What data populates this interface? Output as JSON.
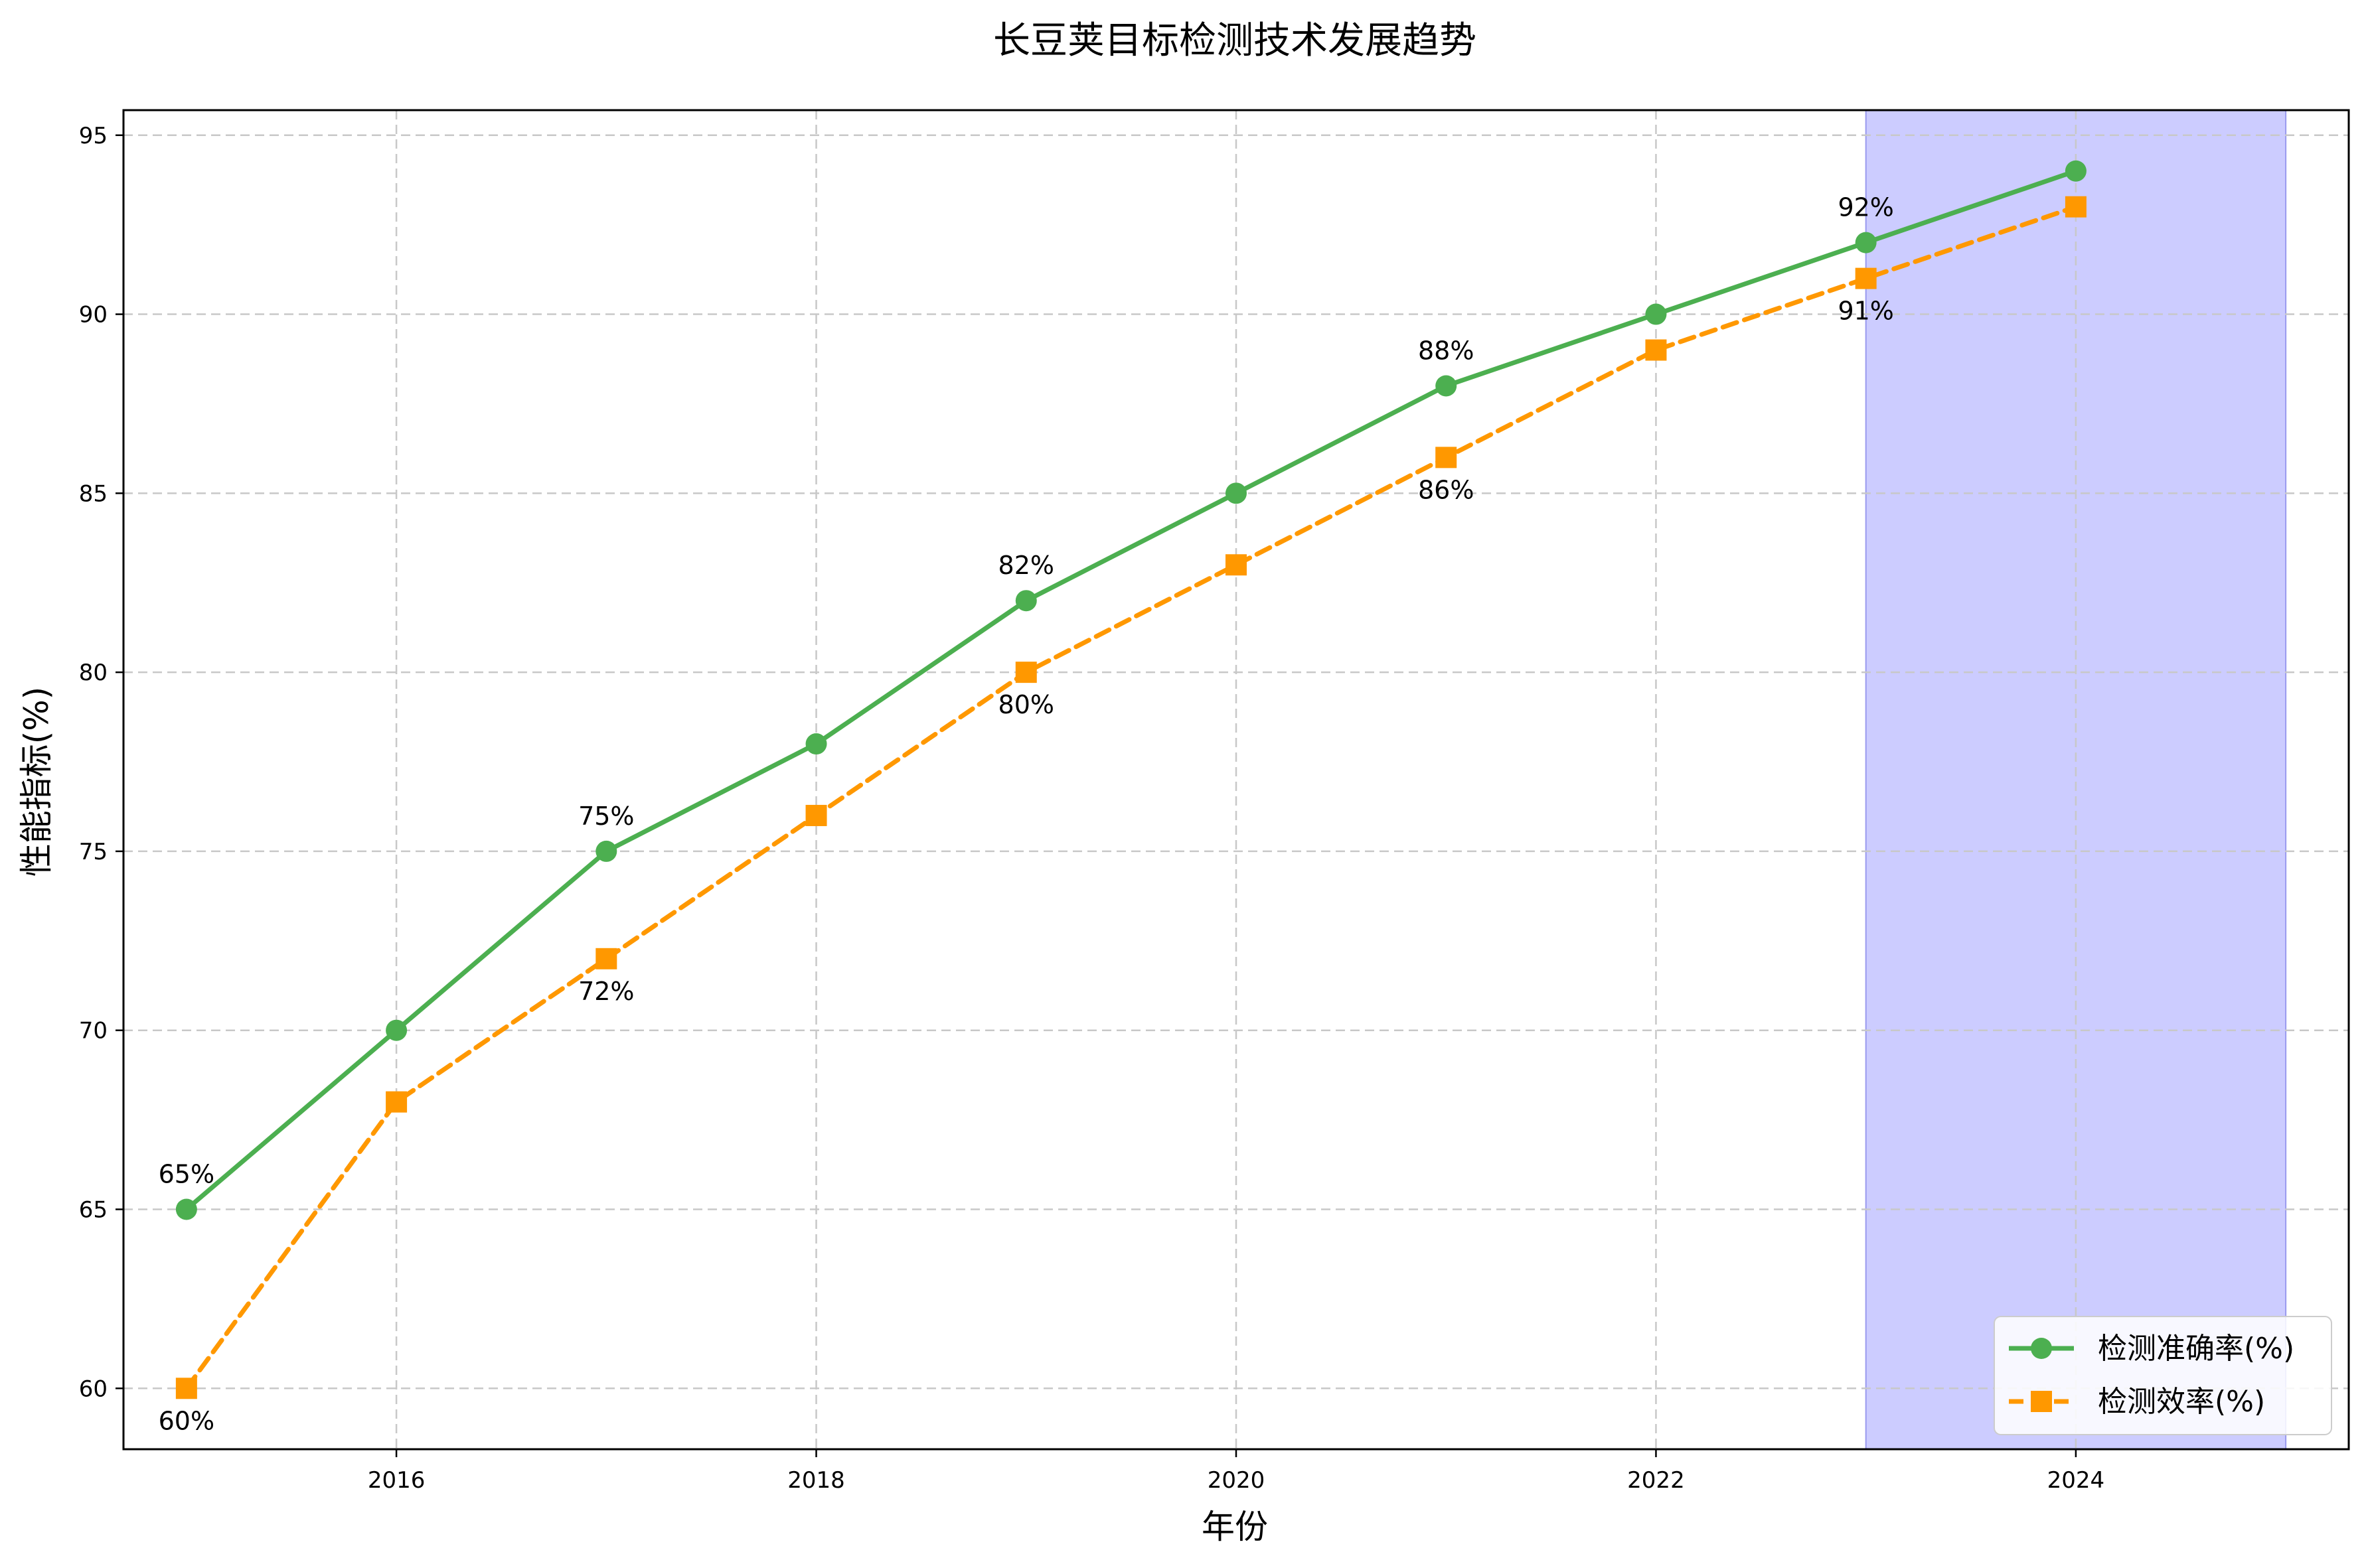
{
  "colors": {
    "accuracy": "#4caf50",
    "efficiency": "#ff9800",
    "highlight": "#ccccff",
    "highlight_edge": "#9999ee"
  },
  "chart_data": {
    "type": "line",
    "title": "长豆荚目标检测技术发展趋势",
    "xlabel": "年份",
    "ylabel": "性能指标(%)",
    "xlim": [
      2014.7,
      2025.3
    ],
    "ylim": [
      58.3,
      95.7
    ],
    "xticks": [
      2016,
      2018,
      2020,
      2022,
      2024
    ],
    "yticks": [
      60,
      65,
      70,
      75,
      80,
      85,
      90,
      95
    ],
    "grid": true,
    "legend_position": "lower-right",
    "highlight_span": [
      2023,
      2025
    ],
    "x": [
      2015,
      2016,
      2017,
      2018,
      2019,
      2020,
      2021,
      2022,
      2023,
      2024
    ],
    "series": [
      {
        "name": "检测准确率(%)",
        "values": [
          65,
          70,
          75,
          78,
          82,
          85,
          88,
          90,
          92,
          94
        ],
        "marker": "circle",
        "line_style": "solid",
        "color": "#4caf50",
        "labels": [
          {
            "x": 2015,
            "text": "65%"
          },
          {
            "x": 2017,
            "text": "75%"
          },
          {
            "x": 2019,
            "text": "82%"
          },
          {
            "x": 2021,
            "text": "88%"
          },
          {
            "x": 2023,
            "text": "92%"
          }
        ]
      },
      {
        "name": "检测效率(%)",
        "values": [
          60,
          68,
          72,
          76,
          80,
          83,
          86,
          89,
          91,
          93
        ],
        "marker": "square",
        "line_style": "dashed",
        "color": "#ff9800",
        "labels": [
          {
            "x": 2015,
            "text": "60%"
          },
          {
            "x": 2017,
            "text": "72%"
          },
          {
            "x": 2019,
            "text": "80%"
          },
          {
            "x": 2021,
            "text": "86%"
          },
          {
            "x": 2023,
            "text": "91%"
          }
        ]
      }
    ]
  }
}
